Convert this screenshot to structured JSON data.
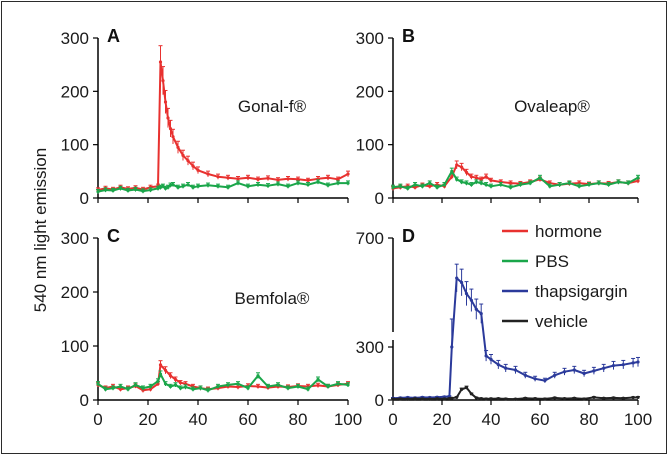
{
  "y_axis_label": "540 nm light emission",
  "legend": [
    {
      "label": "hormone",
      "color": "#e8312f"
    },
    {
      "label": "PBS",
      "color": "#1aa64a"
    },
    {
      "label": "thapsigargin",
      "color": "#2b3a9b"
    },
    {
      "label": "vehicle",
      "color": "#222222"
    }
  ],
  "chart_data": [
    {
      "panel": "A",
      "type": "line",
      "title": "Gonal-f®",
      "xlim": [
        0,
        100
      ],
      "ylim": [
        0,
        300
      ],
      "x_ticks": [
        "0",
        "20",
        "40",
        "60",
        "80",
        "100"
      ],
      "y_ticks": [
        "0",
        "100",
        "200",
        "300"
      ],
      "x": [
        0,
        3,
        6,
        9,
        12,
        15,
        18,
        21,
        24,
        25,
        26,
        27,
        28,
        29,
        30,
        32,
        34,
        36,
        38,
        40,
        44,
        48,
        52,
        56,
        60,
        64,
        68,
        72,
        76,
        80,
        84,
        88,
        92,
        96,
        100
      ],
      "series": [
        {
          "name": "hormone",
          "color": "#e8312f",
          "values": [
            15,
            18,
            16,
            20,
            17,
            19,
            16,
            20,
            22,
            255,
            220,
            180,
            150,
            130,
            115,
            95,
            80,
            70,
            60,
            52,
            45,
            40,
            38,
            36,
            38,
            35,
            37,
            34,
            36,
            35,
            33,
            36,
            38,
            35,
            45
          ]
        },
        {
          "name": "PBS",
          "color": "#1aa64a",
          "values": [
            12,
            15,
            14,
            18,
            14,
            16,
            13,
            15,
            18,
            20,
            22,
            18,
            20,
            24,
            25,
            20,
            22,
            25,
            20,
            22,
            24,
            22,
            20,
            28,
            22,
            25,
            23,
            26,
            22,
            28,
            25,
            30,
            24,
            28,
            28
          ]
        }
      ]
    },
    {
      "panel": "B",
      "type": "line",
      "title": "Ovaleap®",
      "xlim": [
        0,
        100
      ],
      "ylim": [
        0,
        300
      ],
      "x_ticks": [
        "0",
        "20",
        "40",
        "60",
        "80",
        "100"
      ],
      "y_ticks": [
        "0",
        "100",
        "200",
        "300"
      ],
      "x": [
        0,
        3,
        6,
        9,
        12,
        15,
        18,
        21,
        24,
        26,
        28,
        30,
        32,
        34,
        36,
        38,
        40,
        44,
        48,
        52,
        56,
        60,
        64,
        68,
        72,
        76,
        80,
        84,
        88,
        92,
        96,
        100
      ],
      "series": [
        {
          "name": "hormone",
          "color": "#e8312f",
          "values": [
            18,
            20,
            22,
            20,
            24,
            22,
            25,
            22,
            40,
            62,
            58,
            48,
            40,
            38,
            35,
            40,
            33,
            30,
            28,
            27,
            30,
            35,
            28,
            25,
            27,
            28,
            26,
            28,
            27,
            30,
            28,
            32
          ]
        },
        {
          "name": "PBS",
          "color": "#1aa64a",
          "values": [
            20,
            22,
            18,
            25,
            22,
            28,
            20,
            25,
            50,
            35,
            30,
            28,
            25,
            30,
            28,
            25,
            22,
            25,
            20,
            25,
            28,
            38,
            22,
            25,
            28,
            22,
            25,
            28,
            25,
            30,
            28,
            38
          ]
        }
      ]
    },
    {
      "panel": "C",
      "type": "line",
      "title": "Bemfola®",
      "xlim": [
        0,
        100
      ],
      "ylim": [
        0,
        300
      ],
      "x_ticks": [
        "0",
        "20",
        "40",
        "60",
        "80",
        "100"
      ],
      "y_ticks": [
        "0",
        "100",
        "200",
        "300"
      ],
      "x": [
        0,
        3,
        6,
        9,
        12,
        15,
        18,
        21,
        24,
        25,
        27,
        29,
        31,
        33,
        35,
        38,
        41,
        44,
        48,
        52,
        56,
        60,
        64,
        68,
        72,
        76,
        80,
        84,
        88,
        92,
        96,
        100
      ],
      "series": [
        {
          "name": "hormone",
          "color": "#e8312f",
          "values": [
            28,
            22,
            25,
            20,
            22,
            26,
            18,
            20,
            30,
            65,
            55,
            45,
            38,
            32,
            30,
            25,
            22,
            20,
            22,
            25,
            24,
            26,
            25,
            23,
            25,
            24,
            26,
            25,
            27,
            25,
            28,
            30
          ]
        },
        {
          "name": "PBS",
          "color": "#1aa64a",
          "values": [
            30,
            20,
            22,
            25,
            20,
            28,
            22,
            25,
            35,
            48,
            30,
            25,
            28,
            22,
            24,
            20,
            22,
            18,
            25,
            28,
            30,
            22,
            45,
            25,
            28,
            22,
            25,
            20,
            38,
            25,
            30,
            28
          ]
        }
      ]
    },
    {
      "panel": "D",
      "type": "line",
      "y_axis_break": true,
      "xlim": [
        0,
        100
      ],
      "ylim": [
        0,
        700
      ],
      "x_ticks": [
        "0",
        "20",
        "40",
        "60",
        "80",
        "100"
      ],
      "y_ticks": [
        "0",
        "300",
        "700"
      ],
      "x": [
        0,
        3,
        6,
        9,
        12,
        15,
        18,
        21,
        23,
        24,
        26,
        28,
        30,
        32,
        34,
        36,
        38,
        40,
        43,
        46,
        50,
        54,
        58,
        62,
        66,
        70,
        74,
        78,
        82,
        86,
        90,
        94,
        98,
        100
      ],
      "series": [
        {
          "name": "thapsigargin",
          "color": "#2b3a9b",
          "values": [
            10,
            12,
            14,
            12,
            15,
            14,
            16,
            18,
            20,
            300,
            520,
            500,
            450,
            420,
            380,
            360,
            250,
            230,
            200,
            180,
            170,
            140,
            120,
            110,
            140,
            160,
            170,
            150,
            165,
            180,
            195,
            200,
            210,
            215
          ]
        },
        {
          "name": "vehicle",
          "color": "#222222",
          "values": [
            5,
            6,
            5,
            7,
            6,
            5,
            7,
            6,
            8,
            10,
            15,
            60,
            70,
            35,
            12,
            8,
            6,
            7,
            8,
            6,
            5,
            10,
            8,
            6,
            12,
            8,
            10,
            6,
            15,
            10,
            12,
            10,
            14,
            15
          ]
        }
      ]
    }
  ]
}
